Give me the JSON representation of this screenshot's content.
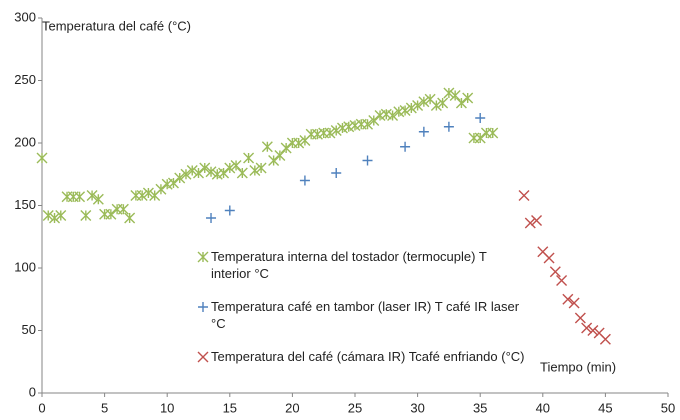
{
  "chart_data": {
    "type": "scatter",
    "y_label": "Temperatura del café (°C)",
    "x_label": "Tiempo (min)",
    "xlim": [
      0,
      50
    ],
    "xticks": [
      0,
      5,
      10,
      15,
      20,
      25,
      30,
      35,
      40,
      45,
      50
    ],
    "ylim": [
      0,
      300
    ],
    "yticks": [
      0,
      50,
      100,
      150,
      200,
      250,
      300
    ],
    "grid": false,
    "series": [
      {
        "name": "Temperatura interna del tostador (termocuple) T interior °C",
        "color": "#9bbb59",
        "marker": "asterisk",
        "x": [
          0,
          0.5,
          1,
          1.5,
          2,
          2.5,
          3,
          3.5,
          4,
          4.5,
          5,
          5.5,
          6,
          6.5,
          7,
          7.5,
          8,
          8.5,
          9,
          9.5,
          10,
          10.5,
          11,
          11.5,
          12,
          12.5,
          13,
          13.5,
          14,
          14.5,
          15,
          15.5,
          16,
          16.5,
          17,
          17.5,
          18,
          18.5,
          19,
          19.5,
          20,
          20.5,
          21,
          21.5,
          22,
          22.5,
          23,
          23.5,
          24,
          24.5,
          25,
          25.5,
          26,
          26.5,
          27,
          27.5,
          28,
          28.5,
          29,
          29.5,
          30,
          30.5,
          31,
          31.5,
          32,
          32.5,
          33,
          33.5,
          34,
          34.5,
          35,
          35.5,
          36
        ],
        "values": [
          188,
          142,
          140,
          142,
          157,
          157,
          157,
          142,
          158,
          155,
          143,
          143,
          147,
          147,
          140,
          158,
          158,
          160,
          158,
          163,
          167,
          168,
          172,
          175,
          178,
          176,
          180,
          177,
          175,
          176,
          180,
          182,
          176,
          188,
          178,
          180,
          197,
          186,
          190,
          196,
          200,
          200,
          202,
          207,
          207,
          208,
          208,
          210,
          212,
          213,
          214,
          215,
          215,
          218,
          222,
          223,
          222,
          225,
          226,
          228,
          230,
          233,
          235,
          230,
          232,
          240,
          238,
          232,
          236,
          204,
          204,
          208,
          208
        ]
      },
      {
        "name": "Temperatura café en tambor (laser IR) T café IR laser °C",
        "color": "#4f81bd",
        "marker": "plus",
        "x": [
          13.5,
          15,
          21,
          23.5,
          26,
          29,
          30.5,
          32.5,
          35
        ],
        "values": [
          140,
          146,
          170,
          176,
          186,
          197,
          209,
          213,
          220
        ]
      },
      {
        "name": "Temperatura del café (cámara IR) Tcafé enfriando (°C)",
        "color": "#c0504d",
        "marker": "cross",
        "x": [
          38.5,
          39,
          39.5,
          40,
          40.5,
          41,
          41.5,
          42,
          42.5,
          43,
          43.5,
          44,
          44.5,
          45
        ],
        "values": [
          158,
          136,
          138,
          113,
          108,
          97,
          90,
          75,
          72,
          60,
          52,
          50,
          48,
          43
        ]
      }
    ]
  }
}
